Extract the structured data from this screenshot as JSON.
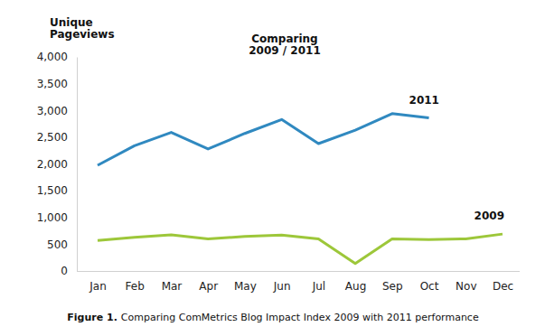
{
  "chart_data": {
    "type": "line",
    "title": [
      "Comparing",
      "2009 / 2011"
    ],
    "y_label": [
      "Unique",
      "Pageviews"
    ],
    "caption_label": "Figure 1.",
    "caption": "Comparing ComMetrics Blog Impact Index 2009 with 2011 performance",
    "categories": [
      "Jan",
      "Feb",
      "Mar",
      "Apr",
      "May",
      "Jun",
      "Jul",
      "Aug",
      "Sep",
      "Oct",
      "Nov",
      "Dec"
    ],
    "series": [
      {
        "name": "2011",
        "color": "#3089c0",
        "values": [
          1975,
          2340,
          2590,
          2280,
          2570,
          2830,
          2380,
          2630,
          2940,
          2860,
          null,
          null
        ]
      },
      {
        "name": "2009",
        "color": "#9dc73a",
        "values": [
          570,
          630,
          675,
          600,
          645,
          670,
          600,
          140,
          600,
          585,
          600,
          690
        ]
      }
    ],
    "ylim": [
      0,
      4000
    ],
    "yticks": [
      0,
      500,
      {
        "value": 1000,
        "label": "1,000"
      },
      {
        "value": 1500,
        "label": "1,500"
      },
      {
        "value": 2000,
        "label": "2,000"
      },
      {
        "value": 2500,
        "label": "2,500"
      },
      {
        "value": 3000,
        "label": "3,000"
      },
      {
        "value": 3500,
        "label": "3,500"
      },
      {
        "value": 4000,
        "label": "4,000"
      }
    ],
    "grid": false
  }
}
